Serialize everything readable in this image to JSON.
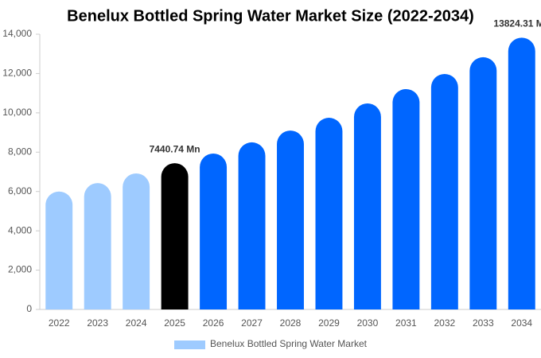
{
  "chart_data": {
    "type": "bar",
    "title": "Benelux Bottled Spring Water Market Size (2022-2034)",
    "categories": [
      "2022",
      "2023",
      "2024",
      "2025",
      "2026",
      "2027",
      "2028",
      "2029",
      "2030",
      "2031",
      "2032",
      "2033",
      "2034"
    ],
    "series": [
      {
        "name": "Benelux Bottled Spring Water Market",
        "color": "#9ecbff",
        "colors": [
          "#9ecbff",
          "#9ecbff",
          "#9ecbff",
          "#000000",
          "#0066ff",
          "#0066ff",
          "#0066ff",
          "#0066ff",
          "#0066ff",
          "#0066ff",
          "#0066ff",
          "#0066ff",
          "#0066ff"
        ],
        "values": [
          6000,
          6430,
          6920,
          7440.74,
          7930,
          8500,
          9100,
          9750,
          10480,
          11210,
          11980,
          12830,
          13824.31
        ],
        "value_labels": [
          null,
          null,
          null,
          "7440.74 Mn",
          null,
          null,
          null,
          null,
          null,
          null,
          null,
          null,
          "13824.31 Mn"
        ]
      }
    ],
    "ylim": [
      0,
      14000
    ],
    "yticks": [
      0,
      {
        "value": 2000,
        "label": "2,000"
      },
      {
        "value": 4000,
        "label": "4,000"
      },
      {
        "value": 6000,
        "label": "6,000"
      },
      {
        "value": 8000,
        "label": "8,000"
      },
      {
        "value": 10000,
        "label": "10,000"
      },
      {
        "value": 12000,
        "label": "12,000"
      },
      {
        "value": 14000,
        "label": "14,000"
      }
    ],
    "grid": false,
    "legend": "bottom"
  }
}
